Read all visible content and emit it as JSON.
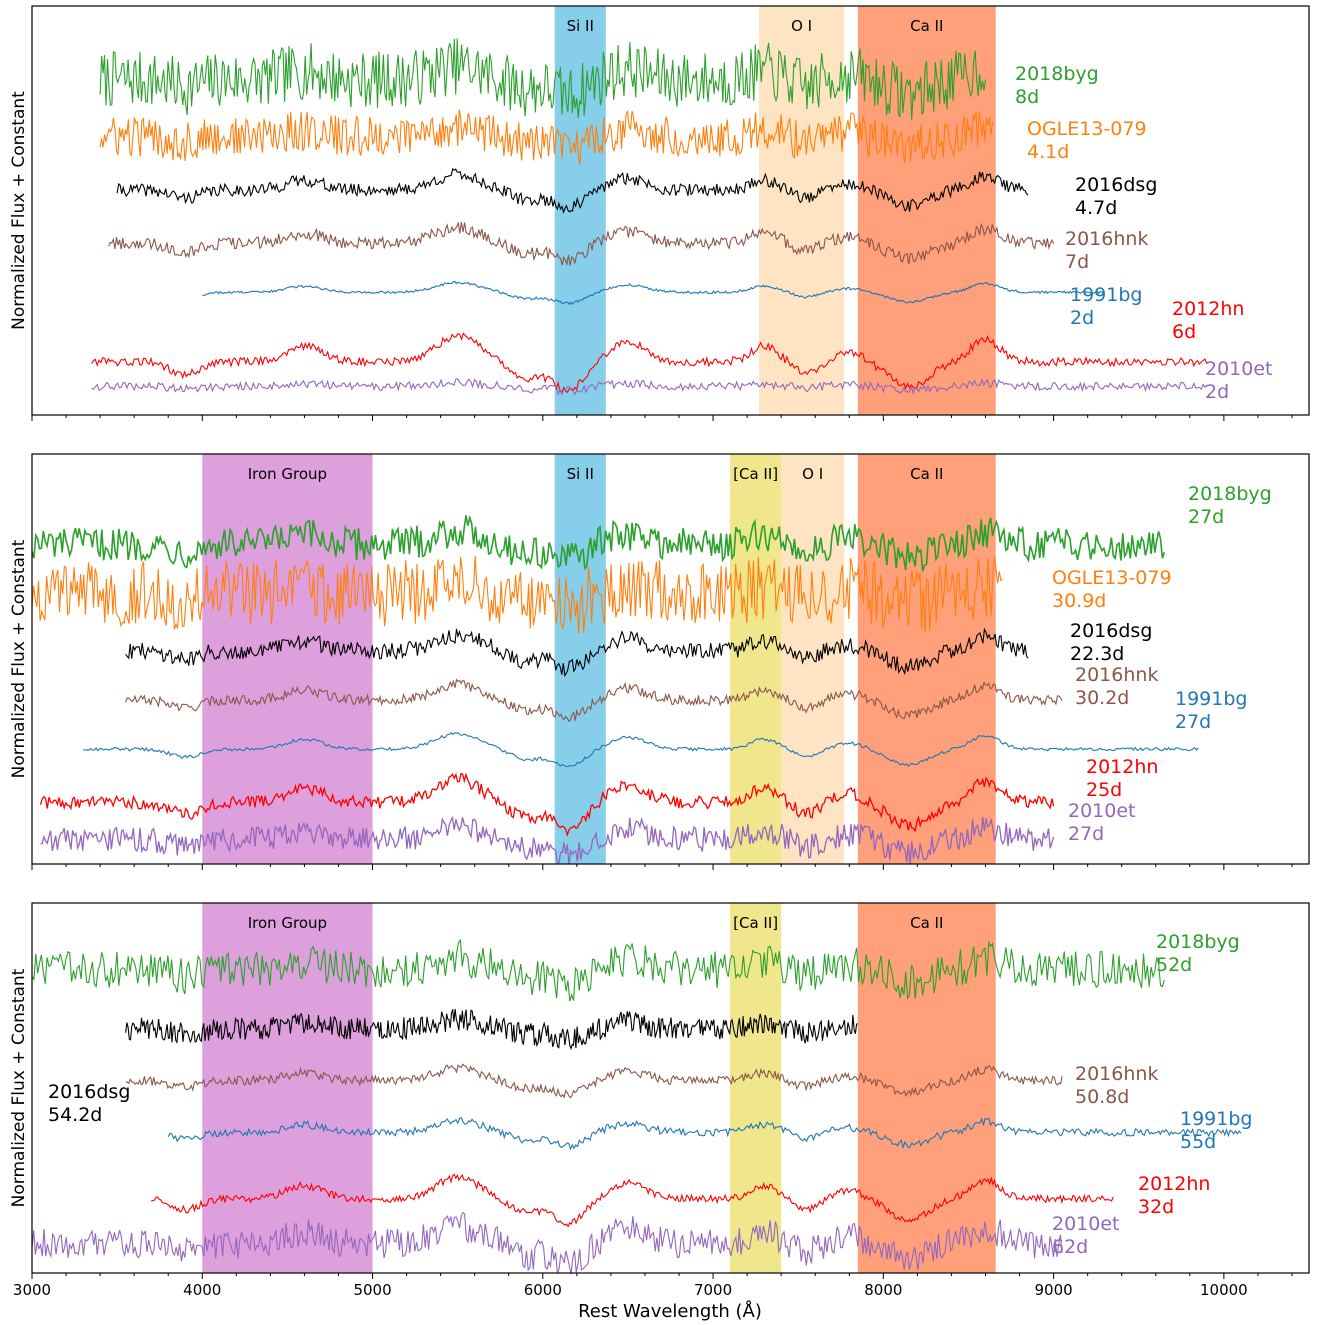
{
  "figure": {
    "xlabel": "Rest Wavelength (Å)",
    "ylabel": "Normalized Flux + Constant"
  },
  "colors": {
    "2018byg": "#2ca02c",
    "OGLE13-079": "#ff7f0e",
    "2016dsg": "#000000",
    "2016hnk": "#8c564b",
    "1991bg": "#1f77b4",
    "2012hn": "#ff0000",
    "2010et": "#9467bd",
    "si_band": "#87ceeb",
    "oi_band": "#ffe4c4",
    "ca_band": "#ffa07a",
    "fe_band": "#dda0dd",
    "forbidden_ca_band": "#f0e68c"
  },
  "chart_data": [
    {
      "type": "line",
      "panel": "top",
      "xlim": [
        3000,
        10500
      ],
      "xticks": [
        3000,
        4000,
        5000,
        6000,
        7000,
        8000,
        9000,
        10000
      ],
      "show_tick_labels": false,
      "bands": [
        {
          "label": "Si II",
          "x0": 6070,
          "x1": 6370,
          "color": "si_band"
        },
        {
          "label": "O I",
          "x0": 7270,
          "x1": 7770,
          "color": "oi_band"
        },
        {
          "label": "Ca II",
          "x0": 7850,
          "x1": 8660,
          "color": "ca_band"
        }
      ],
      "series": [
        {
          "name": "2018byg",
          "epoch": "8d",
          "color": "2018byg",
          "x0": 3400,
          "x1": 8600,
          "level": 0.82,
          "amp": 0.07,
          "noise": 0.07,
          "width": 1.1
        },
        {
          "name": "OGLE13-079",
          "epoch": "4.1d",
          "color": "OGLE13-079",
          "x0": 3400,
          "x1": 8650,
          "level": 0.68,
          "amp": 0.05,
          "noise": 0.05,
          "width": 1.1
        },
        {
          "name": "2016dsg",
          "epoch": "4.7d",
          "color": "2016dsg",
          "x0": 3500,
          "x1": 8850,
          "level": 0.55,
          "amp": 0.08,
          "noise": 0.015,
          "width": 1.1
        },
        {
          "name": "2016hnk",
          "epoch": "7d",
          "color": "2016hnk",
          "x0": 3450,
          "x1": 9000,
          "level": 0.42,
          "amp": 0.08,
          "noise": 0.015,
          "width": 1.1
        },
        {
          "name": "1991bg",
          "epoch": "2d",
          "color": "1991bg",
          "x0": 4000,
          "x1": 9300,
          "level": 0.3,
          "amp": 0.05,
          "noise": 0.003,
          "width": 1.1
        },
        {
          "name": "2012hn",
          "epoch": "6d",
          "color": "2012hn",
          "x0": 3350,
          "x1": 9900,
          "level": 0.13,
          "amp": 0.13,
          "noise": 0.01,
          "width": 1.1
        },
        {
          "name": "2010et",
          "epoch": "2d",
          "color": "2010et",
          "x0": 3350,
          "x1": 9900,
          "level": 0.07,
          "amp": 0.02,
          "noise": 0.01,
          "width": 1.1
        }
      ]
    },
    {
      "type": "line",
      "panel": "middle",
      "xlim": [
        3000,
        10500
      ],
      "xticks": [
        3000,
        4000,
        5000,
        6000,
        7000,
        8000,
        9000,
        10000
      ],
      "show_tick_labels": false,
      "bands": [
        {
          "label": "Iron Group",
          "x0": 4000,
          "x1": 5000,
          "color": "fe_band"
        },
        {
          "label": "Si II",
          "x0": 6070,
          "x1": 6370,
          "color": "si_band"
        },
        {
          "label": "[Ca II]",
          "x0": 7100,
          "x1": 7400,
          "color": "forbidden_ca_band"
        },
        {
          "label": "O I",
          "x0": 7400,
          "x1": 7770,
          "color": "oi_band"
        },
        {
          "label": "Ca II",
          "x0": 7850,
          "x1": 8660,
          "color": "ca_band"
        }
      ],
      "series": [
        {
          "name": "2018byg",
          "epoch": "27d",
          "color": "2018byg",
          "x0": 3000,
          "x1": 9650,
          "level": 0.78,
          "amp": 0.07,
          "noise": 0.04,
          "width": 1.6
        },
        {
          "name": "OGLE13-079",
          "epoch": "30.9d",
          "color": "OGLE13-079",
          "x0": 3000,
          "x1": 8700,
          "level": 0.66,
          "amp": 0.05,
          "noise": 0.08,
          "width": 1.1
        },
        {
          "name": "2016dsg",
          "epoch": "22.3d",
          "color": "2016dsg",
          "x0": 3550,
          "x1": 8850,
          "level": 0.52,
          "amp": 0.08,
          "noise": 0.02,
          "width": 1.1
        },
        {
          "name": "2016hnk",
          "epoch": "30.2d",
          "color": "2016hnk",
          "x0": 3550,
          "x1": 9050,
          "level": 0.4,
          "amp": 0.08,
          "noise": 0.012,
          "width": 1.1
        },
        {
          "name": "1991bg",
          "epoch": "27d",
          "color": "1991bg",
          "x0": 3300,
          "x1": 9850,
          "level": 0.28,
          "amp": 0.08,
          "noise": 0.004,
          "width": 1.1
        },
        {
          "name": "2012hn",
          "epoch": "25d",
          "color": "2012hn",
          "x0": 3050,
          "x1": 9000,
          "level": 0.15,
          "amp": 0.12,
          "noise": 0.015,
          "width": 1.3
        },
        {
          "name": "2010et",
          "epoch": "27d",
          "color": "2010et",
          "x0": 3050,
          "x1": 9000,
          "level": 0.06,
          "amp": 0.07,
          "noise": 0.03,
          "width": 1.3
        }
      ]
    },
    {
      "type": "line",
      "panel": "bottom",
      "xlim": [
        3000,
        10500
      ],
      "xticks": [
        3000,
        4000,
        5000,
        6000,
        7000,
        8000,
        9000,
        10000
      ],
      "show_tick_labels": true,
      "bands": [
        {
          "label": "Iron Group",
          "x0": 4000,
          "x1": 5000,
          "color": "fe_band"
        },
        {
          "label": "[Ca II]",
          "x0": 7100,
          "x1": 7400,
          "color": "forbidden_ca_band"
        },
        {
          "label": "Ca II",
          "x0": 7850,
          "x1": 8660,
          "color": "ca_band"
        }
      ],
      "series": [
        {
          "name": "2018byg",
          "epoch": "52d",
          "color": "2018byg",
          "x0": 3000,
          "x1": 9650,
          "level": 0.82,
          "amp": 0.07,
          "noise": 0.05,
          "width": 1.1
        },
        {
          "name": "2016dsg",
          "epoch": "54.2d",
          "color": "2016dsg",
          "x0": 3550,
          "x1": 7850,
          "level": 0.66,
          "amp": 0.05,
          "noise": 0.03,
          "width": 1.1
        },
        {
          "name": "2016hnk",
          "epoch": "50.8d",
          "color": "2016hnk",
          "x0": 3550,
          "x1": 9050,
          "level": 0.52,
          "amp": 0.07,
          "noise": 0.012,
          "width": 1.1
        },
        {
          "name": "1991bg",
          "epoch": "55d",
          "color": "1991bg",
          "x0": 3800,
          "x1": 10100,
          "level": 0.38,
          "amp": 0.07,
          "noise": 0.01,
          "width": 1.1
        },
        {
          "name": "2012hn",
          "epoch": "32d",
          "color": "2012hn",
          "x0": 3700,
          "x1": 9350,
          "level": 0.2,
          "amp": 0.12,
          "noise": 0.01,
          "width": 1.1
        },
        {
          "name": "2010et",
          "epoch": "62d",
          "color": "2010et",
          "x0": 3000,
          "x1": 9050,
          "level": 0.08,
          "amp": 0.1,
          "noise": 0.04,
          "width": 1.1
        }
      ]
    }
  ]
}
